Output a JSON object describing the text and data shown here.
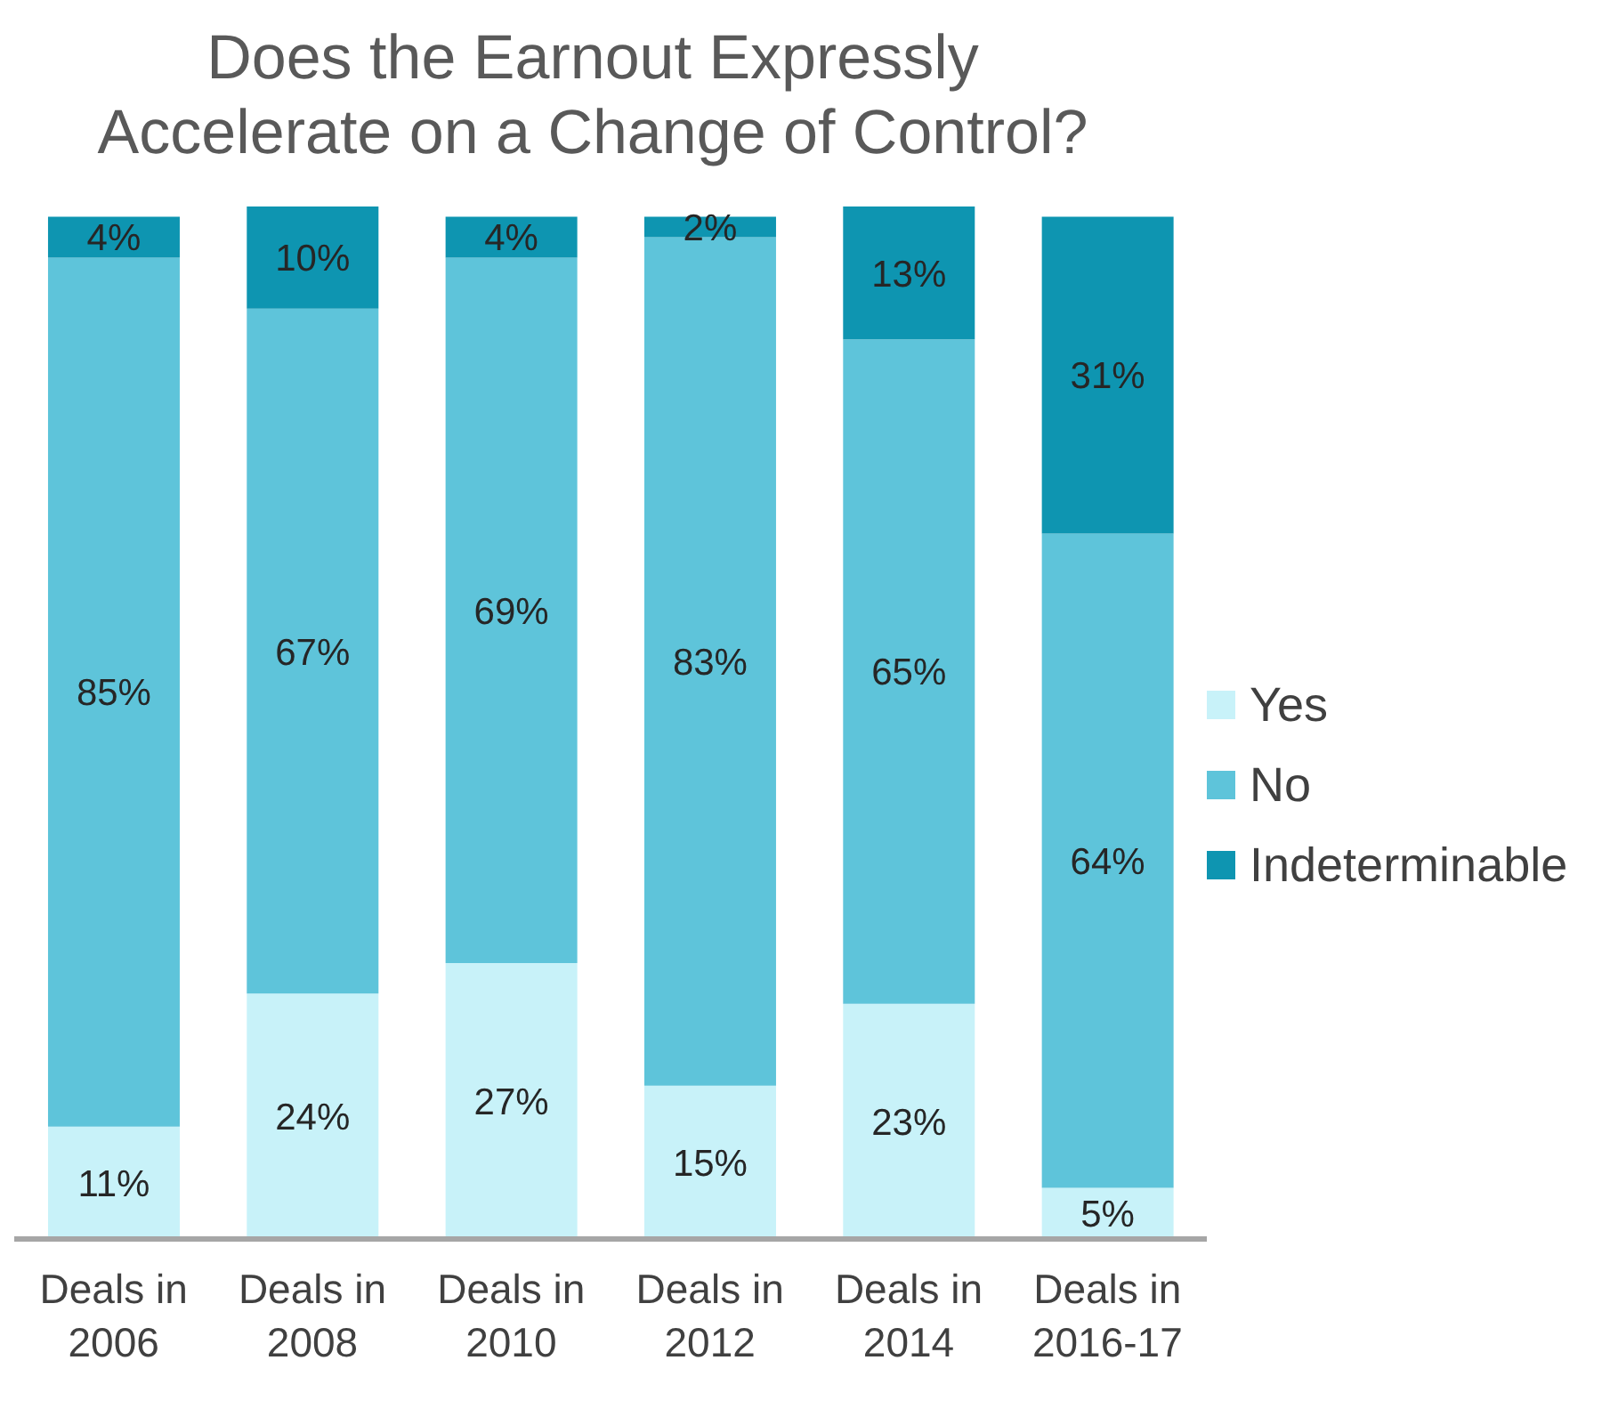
{
  "chart_data": {
    "type": "bar",
    "title": "Does the Earnout Expressly Accelerate on a Change of Control?",
    "categories": [
      "Deals in 2006",
      "Deals in 2008",
      "Deals in 2010",
      "Deals in 2012",
      "Deals in 2014",
      "Deals in 2016-17"
    ],
    "stacked": true,
    "legend": "right",
    "tick_labels": "x",
    "series": [
      {
        "name": "Yes",
        "color": "#c8f2f9",
        "values": [
          11,
          24,
          27,
          15,
          23,
          5
        ],
        "value_labels": [
          "11%",
          "24%",
          "27%",
          "15%",
          "23%",
          "5%"
        ]
      },
      {
        "name": "No",
        "color": "#5ec4da",
        "values": [
          85,
          67,
          69,
          83,
          65,
          64
        ],
        "value_labels": [
          "85%",
          "67%",
          "69%",
          "83%",
          "65%",
          "64%"
        ]
      },
      {
        "name": "Indeterminable",
        "color": "#0e95b1",
        "values": [
          4,
          10,
          4,
          2,
          13,
          31
        ],
        "value_labels": [
          "4%",
          "10%",
          "4%",
          "2%",
          "13%",
          "31%"
        ]
      }
    ]
  }
}
